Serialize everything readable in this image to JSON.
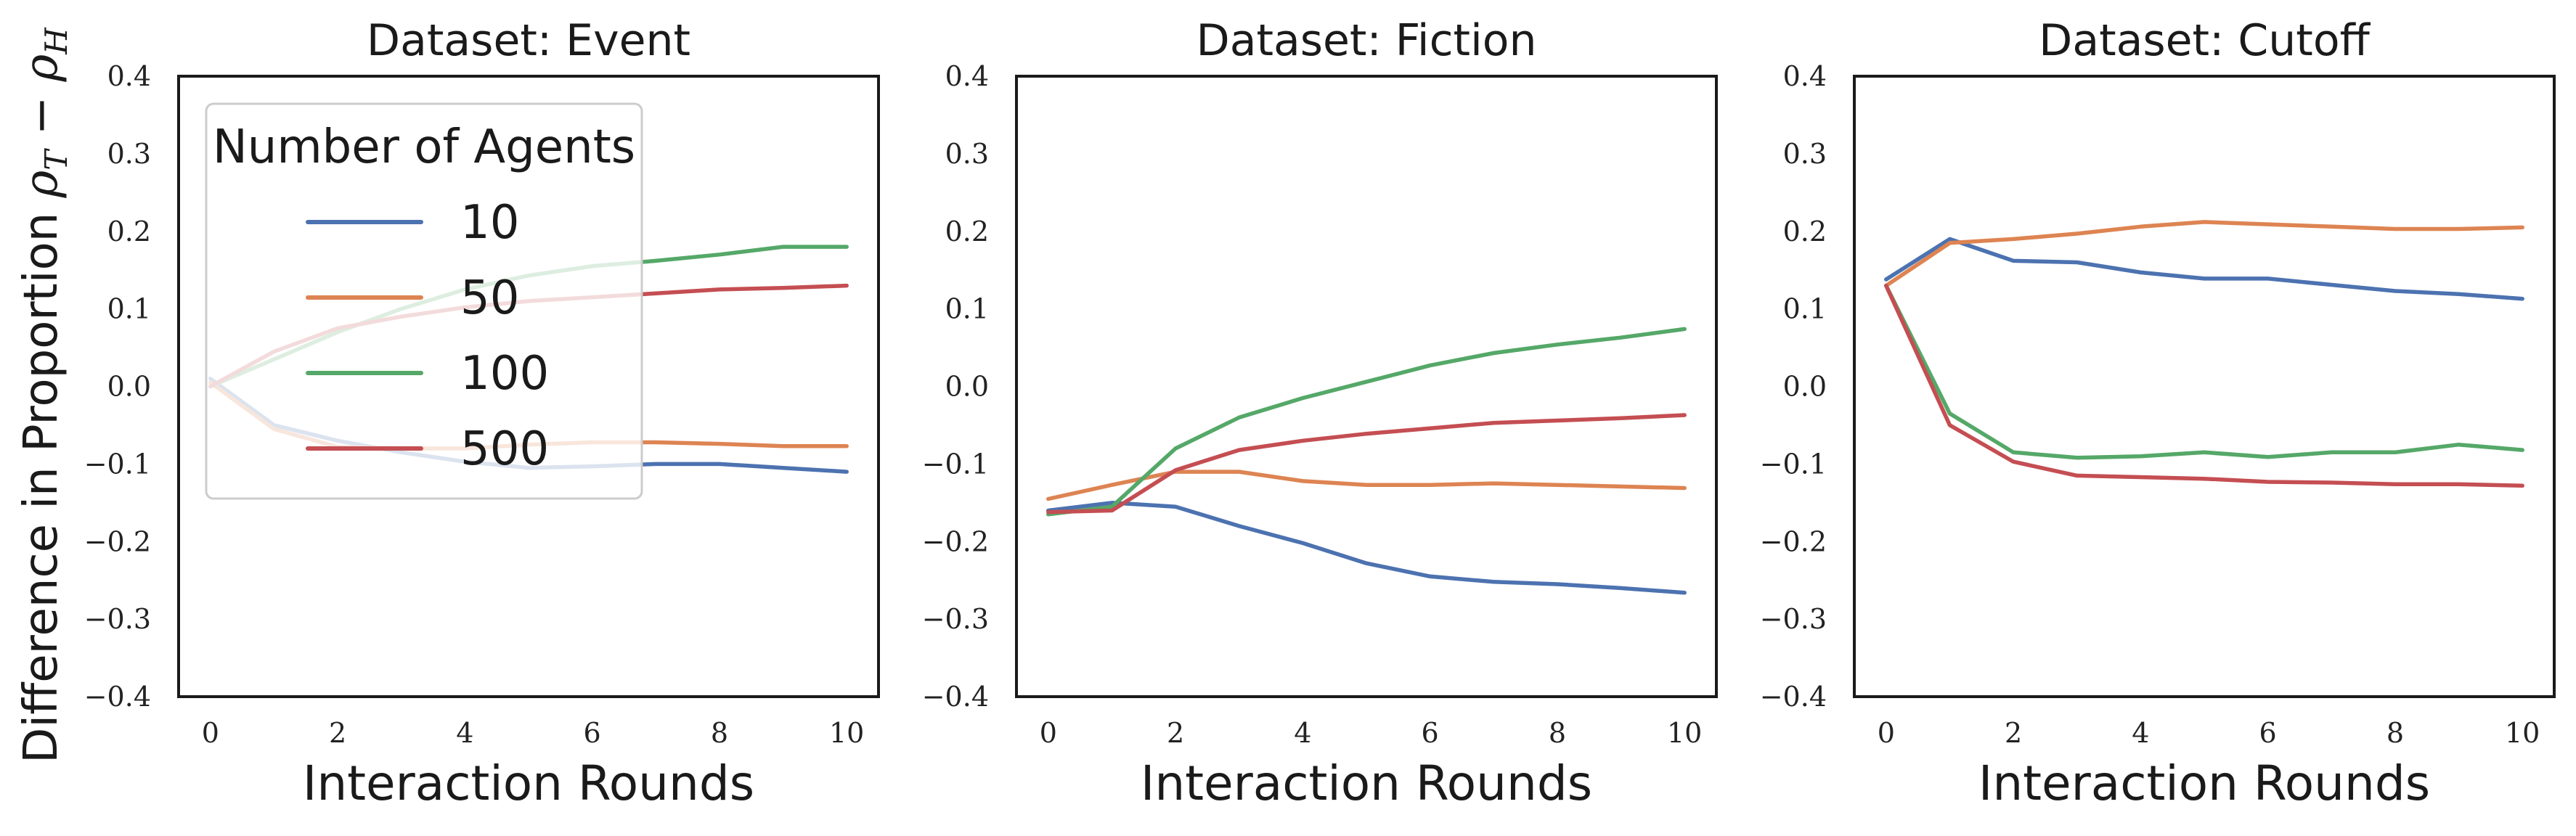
{
  "figure": {
    "ylabel": {
      "text": "Difference in Proportion ",
      "symbol": "ρ",
      "sub_t": "T",
      "minus": " − ",
      "sub_h": "H"
    }
  },
  "legend": {
    "title": "Number of Agents",
    "entries": [
      {
        "label": "10",
        "color": "#4c72b0"
      },
      {
        "label": "50",
        "color": "#dd8452"
      },
      {
        "label": "100",
        "color": "#55a868"
      },
      {
        "label": "500",
        "color": "#c44e52"
      }
    ]
  },
  "chart_data": [
    {
      "type": "line",
      "title": "Dataset: Event",
      "xlabel": "Interaction Rounds",
      "ylabel": "Difference in Proportion ρT − ρH",
      "xlim": [
        -0.5,
        10.5
      ],
      "ylim": [
        -0.4,
        0.4
      ],
      "xticks": [
        "0",
        "2",
        "4",
        "6",
        "8",
        "10"
      ],
      "yticks": [
        "0.4",
        "0.3",
        "0.2",
        "0.1",
        "0.0",
        "−0.1",
        "−0.2",
        "−0.3",
        "−0.4"
      ],
      "grid": false,
      "legend_position": "upper-left",
      "x": [
        0,
        1,
        2,
        3,
        4,
        5,
        6,
        7,
        8,
        9,
        10
      ],
      "series": [
        {
          "name": "10",
          "color": "#4c72b0",
          "values": [
            0.01,
            -0.05,
            -0.07,
            -0.085,
            -0.097,
            -0.105,
            -0.103,
            -0.1,
            -0.1,
            -0.105,
            -0.11
          ]
        },
        {
          "name": "50",
          "color": "#dd8452",
          "values": [
            0.005,
            -0.055,
            -0.078,
            -0.08,
            -0.08,
            -0.075,
            -0.072,
            -0.072,
            -0.074,
            -0.077,
            -0.077
          ]
        },
        {
          "name": "100",
          "color": "#55a868",
          "values": [
            0.0,
            0.035,
            0.07,
            0.1,
            0.125,
            0.143,
            0.155,
            0.162,
            0.17,
            0.18,
            0.18
          ]
        },
        {
          "name": "500",
          "color": "#c44e52",
          "values": [
            0.0,
            0.045,
            0.075,
            0.09,
            0.102,
            0.11,
            0.115,
            0.12,
            0.125,
            0.127,
            0.13
          ]
        }
      ]
    },
    {
      "type": "line",
      "title": "Dataset: Fiction",
      "xlabel": "Interaction Rounds",
      "xlim": [
        -0.5,
        10.5
      ],
      "ylim": [
        -0.4,
        0.4
      ],
      "xticks": [
        "0",
        "2",
        "4",
        "6",
        "8",
        "10"
      ],
      "yticks": [
        "0.4",
        "0.3",
        "0.2",
        "0.1",
        "0.0",
        "−0.1",
        "−0.2",
        "−0.3",
        "−0.4"
      ],
      "grid": false,
      "x": [
        0,
        1,
        2,
        3,
        4,
        5,
        6,
        7,
        8,
        9,
        10
      ],
      "series": [
        {
          "name": "10",
          "color": "#4c72b0",
          "values": [
            -0.16,
            -0.15,
            -0.155,
            -0.18,
            -0.202,
            -0.228,
            -0.245,
            -0.252,
            -0.255,
            -0.26,
            -0.266
          ]
        },
        {
          "name": "50",
          "color": "#dd8452",
          "values": [
            -0.145,
            -0.127,
            -0.11,
            -0.11,
            -0.122,
            -0.127,
            -0.127,
            -0.125,
            -0.127,
            -0.129,
            -0.131
          ]
        },
        {
          "name": "100",
          "color": "#55a868",
          "values": [
            -0.165,
            -0.155,
            -0.08,
            -0.04,
            -0.015,
            0.006,
            0.027,
            0.043,
            0.054,
            0.063,
            0.074
          ]
        },
        {
          "name": "500",
          "color": "#c44e52",
          "values": [
            -0.162,
            -0.16,
            -0.108,
            -0.082,
            -0.07,
            -0.061,
            -0.054,
            -0.047,
            -0.044,
            -0.041,
            -0.037
          ]
        }
      ]
    },
    {
      "type": "line",
      "title": "Dataset: Cutoff",
      "xlabel": "Interaction Rounds",
      "xlim": [
        -0.5,
        10.5
      ],
      "ylim": [
        -0.4,
        0.4
      ],
      "xticks": [
        "0",
        "2",
        "4",
        "6",
        "8",
        "10"
      ],
      "yticks": [
        "0.4",
        "0.3",
        "0.2",
        "0.1",
        "0.0",
        "−0.1",
        "−0.2",
        "−0.3",
        "−0.4"
      ],
      "grid": false,
      "x": [
        0,
        1,
        2,
        3,
        4,
        5,
        6,
        7,
        8,
        9,
        10
      ],
      "series": [
        {
          "name": "10",
          "color": "#4c72b0",
          "values": [
            0.138,
            0.19,
            0.162,
            0.16,
            0.147,
            0.139,
            0.139,
            0.131,
            0.123,
            0.119,
            0.113
          ]
        },
        {
          "name": "50",
          "color": "#dd8452",
          "values": [
            0.13,
            0.185,
            0.19,
            0.197,
            0.206,
            0.212,
            0.209,
            0.206,
            0.203,
            0.203,
            0.205
          ]
        },
        {
          "name": "100",
          "color": "#55a868",
          "values": [
            0.13,
            -0.035,
            -0.085,
            -0.092,
            -0.09,
            -0.085,
            -0.091,
            -0.085,
            -0.085,
            -0.075,
            -0.082
          ]
        },
        {
          "name": "500",
          "color": "#c44e52",
          "values": [
            0.13,
            -0.05,
            -0.097,
            -0.115,
            -0.117,
            -0.119,
            -0.123,
            -0.124,
            -0.126,
            -0.126,
            -0.128
          ]
        }
      ]
    }
  ]
}
